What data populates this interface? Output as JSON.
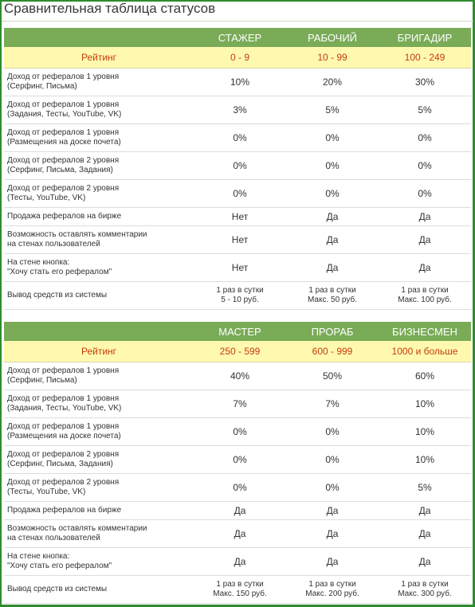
{
  "title": "Сравнительная таблица статусов",
  "tables": [
    {
      "columns": [
        "",
        "СТАЖЕР",
        "РАБОЧИЙ",
        "БРИГАДИР"
      ],
      "rating": {
        "label": "Рейтинг",
        "values": [
          "0 - 9",
          "10 - 99",
          "100 - 249"
        ]
      },
      "rows": [
        {
          "label": [
            "Доход от рефералов 1 уровня",
            "(Серфинг, Письма)"
          ],
          "values": [
            [
              "10%"
            ],
            [
              "20%"
            ],
            [
              "30%"
            ]
          ]
        },
        {
          "label": [
            "Доход от рефералов 1 уровня",
            "(Задания, Тесты, YouTube, VK)"
          ],
          "values": [
            [
              "3%"
            ],
            [
              "5%"
            ],
            [
              "5%"
            ]
          ]
        },
        {
          "label": [
            "Доход от рефералов 1 уровня",
            "(Размещения на доске почета)"
          ],
          "values": [
            [
              "0%"
            ],
            [
              "0%"
            ],
            [
              "0%"
            ]
          ]
        },
        {
          "label": [
            "Доход от рефералов 2 уровня",
            "(Серфинг, Письма, Задания)"
          ],
          "values": [
            [
              "0%"
            ],
            [
              "0%"
            ],
            [
              "0%"
            ]
          ]
        },
        {
          "label": [
            "Доход от рефералов 2 уровня",
            "(Тесты, YouTube, VK)"
          ],
          "values": [
            [
              "0%"
            ],
            [
              "0%"
            ],
            [
              "0%"
            ]
          ]
        },
        {
          "label": [
            "Продажа рефералов на бирже"
          ],
          "values": [
            [
              "Нет"
            ],
            [
              "Да"
            ],
            [
              "Да"
            ]
          ]
        },
        {
          "label": [
            "Возможность оставлять комментарии",
            "на стенах пользователей"
          ],
          "values": [
            [
              "Нет"
            ],
            [
              "Да"
            ],
            [
              "Да"
            ]
          ]
        },
        {
          "label": [
            "На стене кнопка:",
            "\"Хочу стать его рефералом\""
          ],
          "values": [
            [
              "Нет"
            ],
            [
              "Да"
            ],
            [
              "Да"
            ]
          ]
        },
        {
          "label": [
            "Вывод средств из системы"
          ],
          "values": [
            [
              "1 раз в сутки",
              "5 - 10 руб."
            ],
            [
              "1 раз в сутки",
              "Макс. 50 руб."
            ],
            [
              "1 раз в сутки",
              "Макс. 100 руб."
            ]
          ]
        }
      ]
    },
    {
      "columns": [
        "",
        "МАСТЕР",
        "ПРОРАБ",
        "БИЗНЕСМЕН"
      ],
      "rating": {
        "label": "Рейтинг",
        "values": [
          "250 - 599",
          "600 - 999",
          "1000 и больше"
        ]
      },
      "rows": [
        {
          "label": [
            "Доход от рефералов 1 уровня",
            "(Серфинг, Письма)"
          ],
          "values": [
            [
              "40%"
            ],
            [
              "50%"
            ],
            [
              "60%"
            ]
          ]
        },
        {
          "label": [
            "Доход от рефералов 1 уровня",
            "(Задания, Тесты, YouTube, VK)"
          ],
          "values": [
            [
              "7%"
            ],
            [
              "7%"
            ],
            [
              "10%"
            ]
          ]
        },
        {
          "label": [
            "Доход от рефералов 1 уровня",
            "(Размещения на доске почета)"
          ],
          "values": [
            [
              "0%"
            ],
            [
              "0%"
            ],
            [
              "10%"
            ]
          ]
        },
        {
          "label": [
            "Доход от рефералов 2 уровня",
            "(Серфинг, Письма, Задания)"
          ],
          "values": [
            [
              "0%"
            ],
            [
              "0%"
            ],
            [
              "10%"
            ]
          ]
        },
        {
          "label": [
            "Доход от рефералов 2 уровня",
            "(Тесты, YouTube, VK)"
          ],
          "values": [
            [
              "0%"
            ],
            [
              "0%"
            ],
            [
              "5%"
            ]
          ]
        },
        {
          "label": [
            "Продажа рефералов на бирже"
          ],
          "values": [
            [
              "Да"
            ],
            [
              "Да"
            ],
            [
              "Да"
            ]
          ]
        },
        {
          "label": [
            "Возможность оставлять комментарии",
            "на стенах пользователей"
          ],
          "values": [
            [
              "Да"
            ],
            [
              "Да"
            ],
            [
              "Да"
            ]
          ]
        },
        {
          "label": [
            "На стене кнопка:",
            "\"Хочу стать его рефералом\""
          ],
          "values": [
            [
              "Да"
            ],
            [
              "Да"
            ],
            [
              "Да"
            ]
          ]
        },
        {
          "label": [
            "Вывод средств из системы"
          ],
          "values": [
            [
              "1 раз в сутки",
              "Макс. 150 руб."
            ],
            [
              "1 раз в сутки",
              "Макс. 200 руб."
            ],
            [
              "1 раз в сутки",
              "Макс. 300 руб."
            ]
          ]
        }
      ]
    }
  ]
}
